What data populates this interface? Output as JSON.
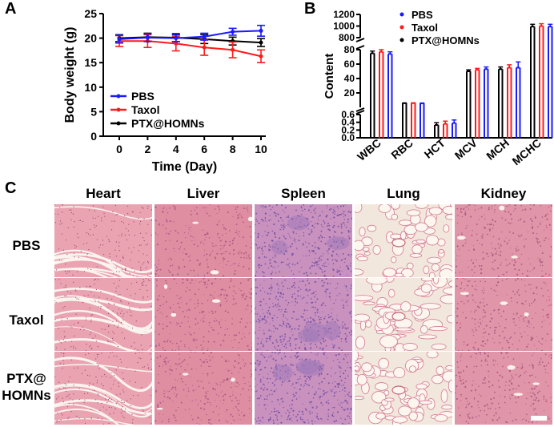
{
  "panels": {
    "a": "A",
    "b": "B",
    "c": "C"
  },
  "chart_data": [
    {
      "type": "line",
      "xlabel": "Time (Day)",
      "ylabel": "Body weight (g)",
      "x": [
        0,
        2,
        4,
        6,
        8,
        10
      ],
      "xlim": [
        0,
        10
      ],
      "ylim": [
        0,
        25
      ],
      "xticks": [
        "0",
        "2",
        "4",
        "6",
        "8",
        "10"
      ],
      "yticks": [
        "0",
        "5",
        "10",
        "15",
        "20",
        "25"
      ],
      "legend_position": "bottom-left",
      "series": [
        {
          "name": "PBS",
          "color": "#1a1aff",
          "values": [
            19.8,
            20.1,
            20.0,
            20.3,
            21.3,
            21.5
          ],
          "errors": [
            0.8,
            0.8,
            0.7,
            0.7,
            0.7,
            1.1
          ]
        },
        {
          "name": "Taxol",
          "color": "#ff1a1a",
          "values": [
            19.4,
            19.4,
            18.9,
            18.1,
            17.6,
            16.3
          ],
          "errors": [
            1.1,
            1.3,
            1.5,
            1.6,
            1.6,
            1.3
          ]
        },
        {
          "name": "PTX@HOMNs",
          "color": "#000000",
          "values": [
            20.0,
            20.2,
            20.1,
            19.8,
            19.4,
            19.1
          ],
          "errors": [
            0.7,
            0.8,
            0.8,
            0.9,
            0.8,
            0.8
          ]
        }
      ]
    },
    {
      "type": "bar",
      "ylabel": "Content",
      "axis_break": true,
      "categories": [
        "WBC",
        "RBC",
        "HCT",
        "MCV",
        "MCH",
        "MCHC"
      ],
      "ytick_groups": [
        [
          "800",
          "1000",
          "1200"
        ],
        [
          "20",
          "40",
          "60",
          "80"
        ],
        [
          "0.0",
          "0.2",
          "0.4",
          "0.6"
        ]
      ],
      "legend_position": "top-center",
      "series": [
        {
          "name": "PBS",
          "color": "#1a1aff",
          "values": [
            74,
            5.5,
            0.38,
            53,
            55,
            990
          ],
          "errors": [
            3,
            0.5,
            0.08,
            3,
            8,
            40
          ]
        },
        {
          "name": "Taxol",
          "color": "#ff1a1a",
          "values": [
            77,
            5.8,
            0.36,
            52,
            55,
            1000
          ],
          "errors": [
            3,
            0.5,
            0.07,
            2,
            4,
            40
          ]
        },
        {
          "name": "PTX@HOMNs",
          "color": "#000000",
          "values": [
            75,
            5.7,
            0.33,
            50,
            53,
            990
          ],
          "errors": [
            3,
            0.4,
            0.06,
            2,
            3,
            40
          ]
        }
      ]
    }
  ],
  "histology": {
    "columns": [
      "Heart",
      "Liver",
      "Spleen",
      "Lung",
      "Kidney"
    ],
    "rows": [
      "PBS",
      "Taxol",
      "PTX@\nHOMNs"
    ]
  }
}
